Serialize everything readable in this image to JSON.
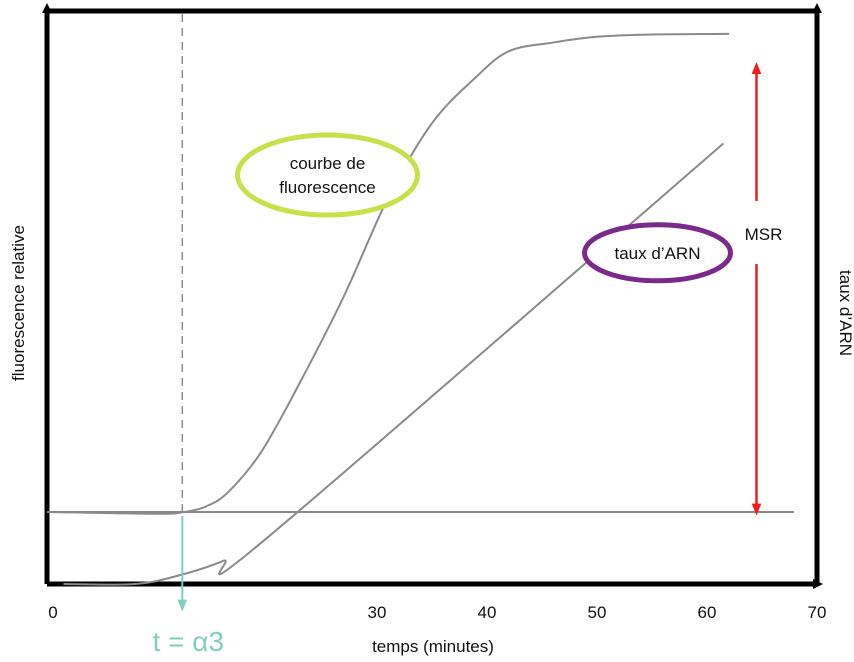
{
  "chart_data": {
    "type": "line",
    "title": "",
    "xlabel": "temps (minutes)",
    "ylabel_left": "fluorescence relative",
    "ylabel_right": "taux d’ARN",
    "xlim": [
      0,
      70
    ],
    "ylim": [
      0,
      100
    ],
    "x_ticks": [
      0,
      30,
      40,
      50,
      60,
      70
    ],
    "grid": false,
    "legend": "none",
    "series": [
      {
        "name": "courbe de fluorescence",
        "color": "#8a8a8a",
        "x": [
          0,
          10,
          12.5,
          14.5,
          16.5,
          19.5,
          23,
          27,
          31,
          35,
          39,
          42,
          46,
          50,
          55,
          62
        ],
        "y": [
          12.5,
          12.2,
          12.5,
          13.5,
          16,
          23,
          35,
          50,
          67,
          80,
          88,
          92.5,
          94,
          95,
          95.4,
          95.5
        ]
      },
      {
        "name": "taux d’ARN",
        "color": "#8a8a8a",
        "x": [
          1.5,
          8,
          12,
          16,
          20,
          61.5
        ],
        "y": [
          0,
          0,
          1.5,
          4,
          8,
          76.5
        ]
      }
    ],
    "baseline": {
      "y": 12.5,
      "color": "#8a8a8a"
    },
    "threshold_line": {
      "x": 12.3,
      "style": "dashed",
      "color": "#8a8a8a"
    },
    "annotations": {
      "threshold_label": "t = α3",
      "threshold_color": "#7fcfbf",
      "msr_label": "MSR",
      "msr_color": "#ee1c1c",
      "msr_x": 64.5,
      "msr_y_low": 12.5,
      "msr_y_high": 90,
      "fluo_bubble": {
        "line1": "courbe de",
        "line2": "fluorescence",
        "color": "#c8e04a",
        "x": 25.5,
        "y": 71
      },
      "arn_bubble": {
        "label": "taux d’ARN",
        "color": "#7b2a8c",
        "x": 55.5,
        "y": 57.5
      }
    },
    "colors": {
      "axis": "#000000"
    }
  }
}
